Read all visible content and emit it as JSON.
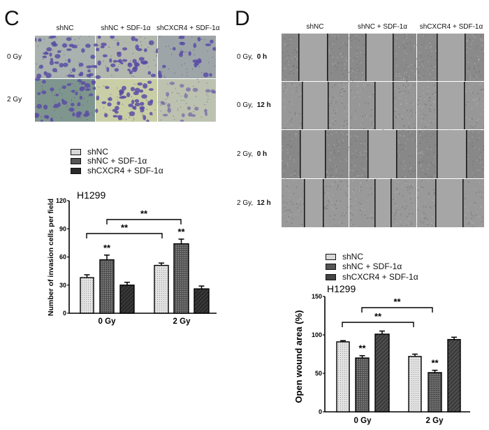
{
  "panel_c": {
    "letter": "C",
    "columns": [
      "shNC",
      "shNC + SDF-1α",
      "shCXCR4 + SDF-1α"
    ],
    "rows": [
      "0 Gy",
      "2 Gy"
    ],
    "image_backgrounds": [
      [
        "#a9b2ae",
        "#b2b8ae",
        "#9ea5a8"
      ],
      [
        "#7f968e",
        "#c9cea6",
        "#bcc2b0"
      ]
    ],
    "cell_color": "#5a4ea6",
    "legend": [
      "shNC",
      "shNC + SDF-1α",
      "shCXCR4 + SDF-1α"
    ],
    "cell_line": "H1299",
    "y_axis_label": "Number of invasion cells per field",
    "y_ticks": [
      "0",
      "30",
      "60",
      "90",
      "120"
    ],
    "x_labels": [
      "0 Gy",
      "2 Gy"
    ],
    "significance": "**"
  },
  "panel_d": {
    "letter": "D",
    "columns": [
      "shNC",
      "shNC + SDF-1α",
      "shCXCR4 + SDF-1α"
    ],
    "rows": [
      {
        "dose": "0 Gy,",
        "time": "0 h"
      },
      {
        "dose": "0 Gy,",
        "time": "12 h"
      },
      {
        "dose": "2 Gy,",
        "time": "0 h"
      },
      {
        "dose": "2 Gy,",
        "time": "12 h"
      }
    ],
    "legend": [
      "shNC",
      "shNC + SDF-1α",
      "shCXCR4 + SDF-1α"
    ],
    "cell_line": "H1299",
    "y_axis_label": "Open wound area (%)",
    "y_ticks": [
      "0",
      "50",
      "100",
      "150"
    ],
    "x_labels": [
      "0 Gy",
      "2 Gy"
    ],
    "significance": "**"
  },
  "chart_data": [
    {
      "type": "bar",
      "title": "H1299",
      "panel": "C",
      "xlabel": "",
      "ylabel": "Number of invasion cells per field",
      "ylim": [
        0,
        120
      ],
      "yticks": [
        0,
        30,
        60,
        90,
        120
      ],
      "categories": [
        "0 Gy",
        "2 Gy"
      ],
      "series": [
        {
          "name": "shNC",
          "values": [
            38,
            51
          ],
          "errors": [
            3,
            2.5
          ],
          "fill": "light-dotted"
        },
        {
          "name": "shNC + SDF-1α",
          "values": [
            57,
            74
          ],
          "errors": [
            5,
            5
          ],
          "fill": "dark-crosshatch"
        },
        {
          "name": "shCXCR4 + SDF-1α",
          "values": [
            30,
            26
          ],
          "errors": [
            3,
            3
          ],
          "fill": "black-diagonal"
        }
      ],
      "annotations": [
        {
          "text": "**",
          "over": "0 Gy / shNC + SDF-1α"
        },
        {
          "text": "**",
          "over": "2 Gy / shNC + SDF-1α"
        },
        {
          "text": "**",
          "bracket": [
            "0 Gy / shNC",
            "2 Gy / shNC"
          ]
        },
        {
          "text": "**",
          "bracket": [
            "0 Gy / shNC + SDF-1α",
            "2 Gy / shNC + SDF-1α"
          ]
        }
      ],
      "legend_position": "top-left",
      "grid": false
    },
    {
      "type": "bar",
      "title": "H1299",
      "panel": "D",
      "xlabel": "",
      "ylabel": "Open wound area (%)",
      "ylim": [
        0,
        150
      ],
      "yticks": [
        0,
        50,
        100,
        150
      ],
      "categories": [
        "0 Gy",
        "2 Gy"
      ],
      "series": [
        {
          "name": "shNC",
          "values": [
            91,
            72
          ],
          "errors": [
            1.5,
            3
          ],
          "fill": "light-dotted"
        },
        {
          "name": "shNC + SDF-1α",
          "values": [
            70,
            51
          ],
          "errors": [
            3,
            3
          ],
          "fill": "dark-crosshatch"
        },
        {
          "name": "shCXCR4 + SDF-1α",
          "values": [
            101,
            94
          ],
          "errors": [
            4,
            3
          ],
          "fill": "dark-diagonal"
        }
      ],
      "annotations": [
        {
          "text": "**",
          "over": "0 Gy / shNC + SDF-1α"
        },
        {
          "text": "**",
          "over": "2 Gy / shNC + SDF-1α"
        },
        {
          "text": "**",
          "bracket": [
            "0 Gy / shNC",
            "2 Gy / shNC"
          ]
        },
        {
          "text": "**",
          "bracket": [
            "0 Gy / shNC + SDF-1α",
            "2 Gy / shNC + SDF-1α"
          ]
        }
      ],
      "legend_position": "top-left",
      "grid": false
    }
  ]
}
